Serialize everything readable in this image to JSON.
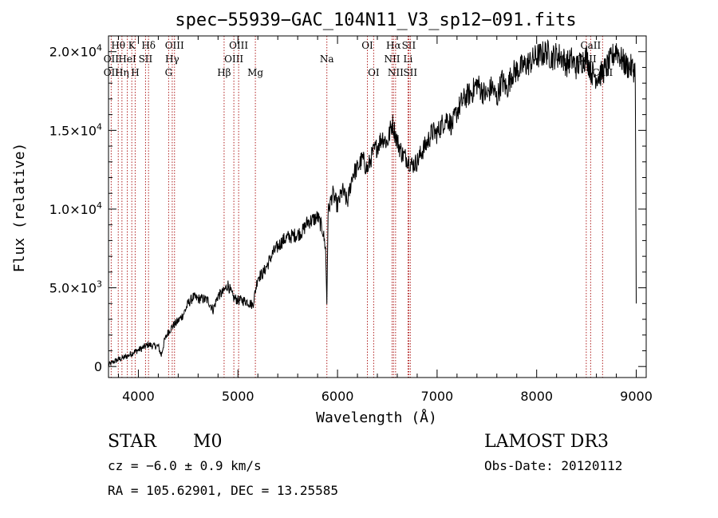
{
  "chart_data": {
    "type": "line",
    "title": "spec−55939−GAC_104N11_V3_sp12−091.fits",
    "xlabel": "Wavelength (Å)",
    "ylabel": "Flux (relative)",
    "xlim": [
      3700,
      9100
    ],
    "ylim": [
      -700,
      21000
    ],
    "x_ticks": [
      {
        "value": 4000,
        "label": "4000"
      },
      {
        "value": 5000,
        "label": "5000"
      },
      {
        "value": 6000,
        "label": "6000"
      },
      {
        "value": 7000,
        "label": "7000"
      },
      {
        "value": 8000,
        "label": "8000"
      },
      {
        "value": 9000,
        "label": "9000"
      }
    ],
    "y_ticks": [
      {
        "value": 0,
        "mantissa": "0",
        "exponent": ""
      },
      {
        "value": 5000,
        "mantissa": "5.0×10",
        "exponent": "3"
      },
      {
        "value": 10000,
        "mantissa": "1.0×10",
        "exponent": "4"
      },
      {
        "value": 15000,
        "mantissa": "1.5×10",
        "exponent": "4"
      },
      {
        "value": 20000,
        "mantissa": "2.0×10",
        "exponent": "4"
      }
    ],
    "series": [
      {
        "name": "spectrum",
        "x": [
          3700,
          3750,
          3800,
          3850,
          3900,
          3950,
          4000,
          4050,
          4100,
          4150,
          4200,
          4230,
          4260,
          4300,
          4350,
          4400,
          4450,
          4500,
          4550,
          4600,
          4650,
          4700,
          4750,
          4800,
          4850,
          4900,
          4950,
          5000,
          5050,
          5100,
          5150,
          5200,
          5250,
          5300,
          5350,
          5400,
          5450,
          5500,
          5550,
          5600,
          5650,
          5700,
          5750,
          5800,
          5850,
          5880,
          5893,
          5905,
          5950,
          6000,
          6050,
          6100,
          6150,
          6200,
          6250,
          6300,
          6350,
          6400,
          6450,
          6500,
          6550,
          6563,
          6600,
          6650,
          6700,
          6750,
          6800,
          6850,
          6900,
          6950,
          7000,
          7050,
          7100,
          7150,
          7200,
          7250,
          7300,
          7350,
          7400,
          7450,
          7500,
          7550,
          7600,
          7650,
          7700,
          7750,
          7800,
          7850,
          7900,
          7950,
          8000,
          8050,
          8100,
          8150,
          8200,
          8250,
          8300,
          8350,
          8400,
          8450,
          8500,
          8550,
          8600,
          8650,
          8700,
          8750,
          8800,
          8850,
          8900,
          8950,
          8990,
          9000
        ],
        "y": [
          100,
          300,
          450,
          550,
          700,
          900,
          1050,
          1200,
          1400,
          1300,
          1300,
          700,
          1600,
          2200,
          2600,
          2900,
          3300,
          4000,
          4400,
          4300,
          4300,
          4200,
          3600,
          4500,
          4700,
          5200,
          4400,
          4200,
          4200,
          4100,
          3900,
          5700,
          5900,
          6500,
          7200,
          7600,
          8000,
          8200,
          8300,
          8400,
          8600,
          9200,
          9300,
          9500,
          8700,
          7500,
          4000,
          9800,
          11000,
          10200,
          11200,
          10400,
          12200,
          12600,
          13200,
          12500,
          13500,
          14000,
          14600,
          14200,
          15500,
          15200,
          14300,
          13500,
          13200,
          12800,
          13000,
          13700,
          14200,
          14900,
          14800,
          15400,
          15800,
          15300,
          16200,
          16800,
          17200,
          17400,
          18000,
          17500,
          17200,
          17800,
          17000,
          18200,
          17600,
          18600,
          18800,
          19000,
          19200,
          19400,
          19700,
          19800,
          20000,
          19600,
          19800,
          19700,
          19200,
          19500,
          19000,
          19400,
          19700,
          18700,
          18400,
          18600,
          19000,
          19500,
          20200,
          19500,
          19100,
          19000,
          18800,
          4000
        ]
      }
    ],
    "line_markers": [
      {
        "label": "Hθ",
        "wavelength": 3798,
        "row": 1
      },
      {
        "label": "OII",
        "wavelength": 3727,
        "row": 2
      },
      {
        "label": "OII",
        "wavelength": 3727,
        "row": 3
      },
      {
        "label": "Hη",
        "wavelength": 3835,
        "row": 3
      },
      {
        "label": "K",
        "wavelength": 3934,
        "row": 1
      },
      {
        "label": "HeI",
        "wavelength": 3889,
        "row": 2
      },
      {
        "label": "H",
        "wavelength": 3968,
        "row": 3
      },
      {
        "label": "SII",
        "wavelength": 4072,
        "row": 2
      },
      {
        "label": "Hδ",
        "wavelength": 4102,
        "row": 1
      },
      {
        "label": "OIII",
        "wavelength": 4363,
        "row": 1
      },
      {
        "label": "Hγ",
        "wavelength": 4340,
        "row": 2
      },
      {
        "label": "G",
        "wavelength": 4304,
        "row": 3
      },
      {
        "label": "Hβ",
        "wavelength": 4861,
        "row": 3
      },
      {
        "label": "OIII",
        "wavelength": 4959,
        "row": 2
      },
      {
        "label": "OIII",
        "wavelength": 5007,
        "row": 1
      },
      {
        "label": "Mg",
        "wavelength": 5175,
        "row": 3
      },
      {
        "label": "Na",
        "wavelength": 5893,
        "row": 2
      },
      {
        "label": "OI",
        "wavelength": 6300,
        "row": 1
      },
      {
        "label": "OI",
        "wavelength": 6363,
        "row": 3
      },
      {
        "label": "NII",
        "wavelength": 6548,
        "row": 2
      },
      {
        "label": "Hα",
        "wavelength": 6563,
        "row": 1
      },
      {
        "label": "NII",
        "wavelength": 6583,
        "row": 3
      },
      {
        "label": "SII",
        "wavelength": 6716,
        "row": 1
      },
      {
        "label": "Li",
        "wavelength": 6708,
        "row": 2
      },
      {
        "label": "SII",
        "wavelength": 6731,
        "row": 3
      },
      {
        "label": "CaII",
        "wavelength": 8542,
        "row": 1
      },
      {
        "label": "CaII",
        "wavelength": 8498,
        "row": 2
      },
      {
        "label": "CaII",
        "wavelength": 8662,
        "row": 3
      }
    ]
  },
  "info": {
    "object_class": "STAR",
    "subclass": "M0",
    "survey": "LAMOST DR3",
    "cz": "cz = −6.0 ± 0.9 km/s",
    "obs_date": "Obs-Date: 20120112",
    "coords": "RA = 105.62901, DEC =  13.25585"
  },
  "colors": {
    "line_marker": "#b02020",
    "spectrum": "#000000"
  }
}
